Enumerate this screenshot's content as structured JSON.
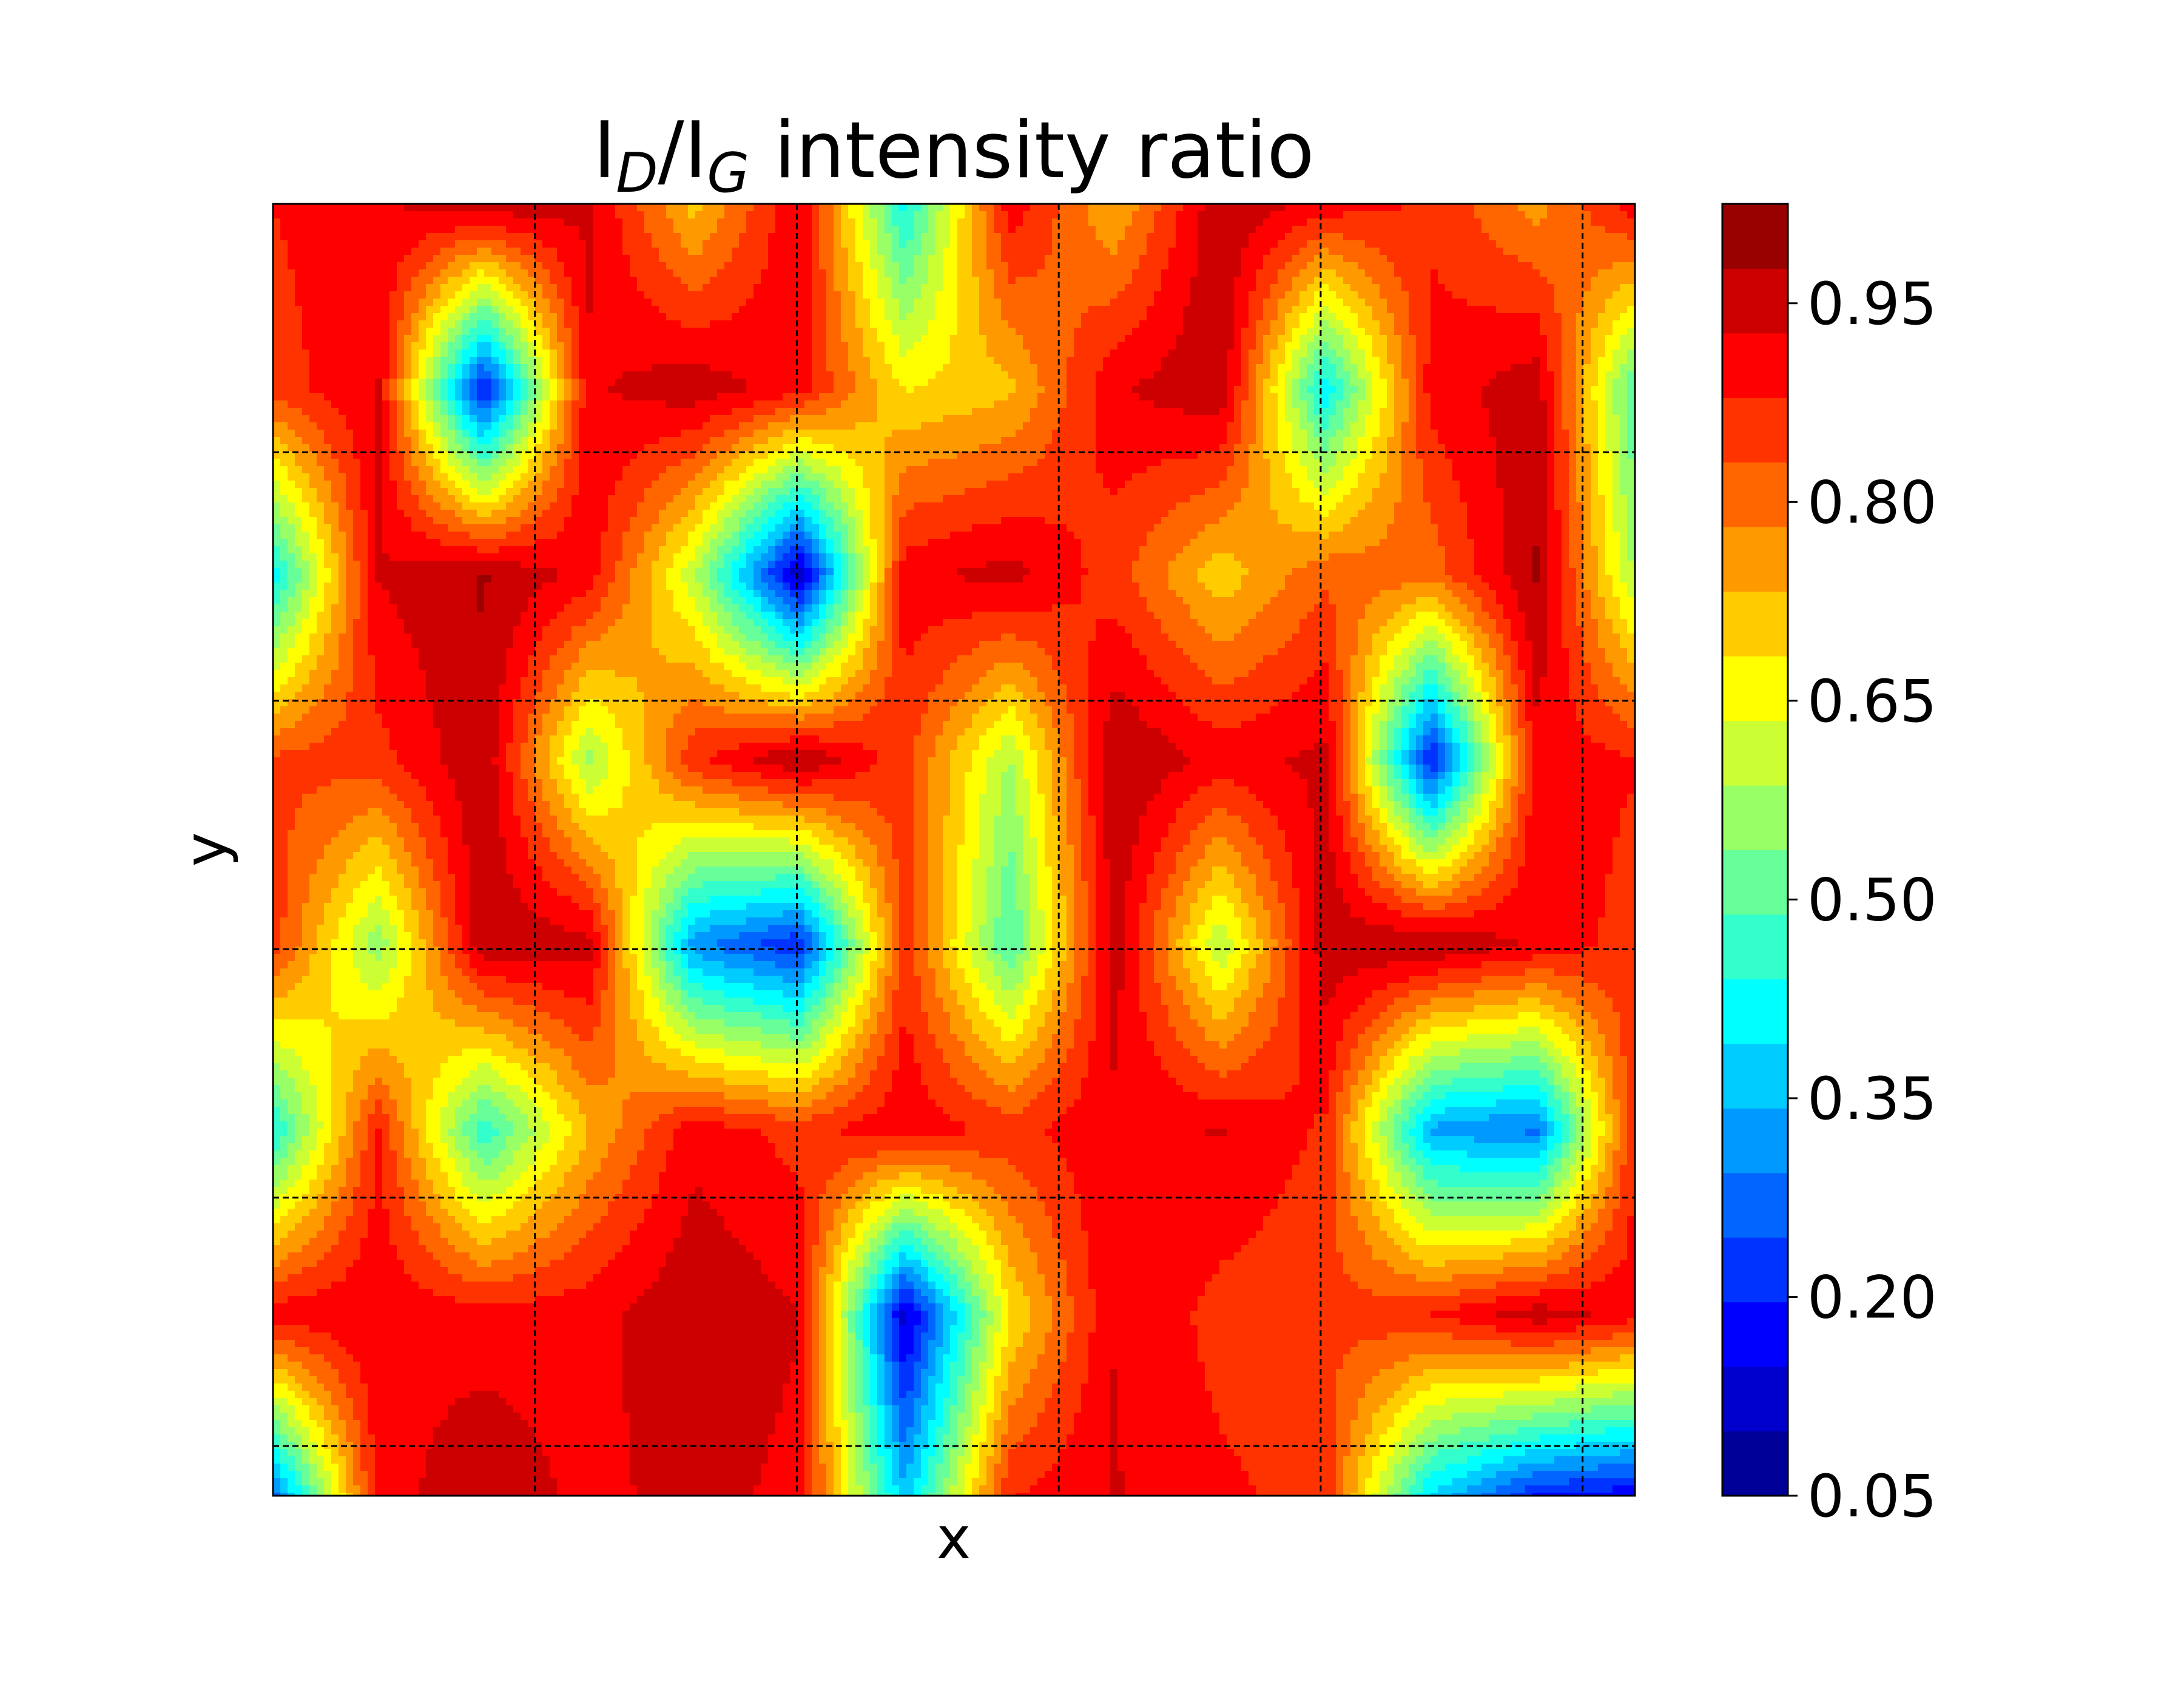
{
  "chart_data": {
    "type": "heatmap",
    "subtype": "filled-contour",
    "title": {
      "main_before": "I",
      "main_sub1": "D",
      "main_mid": "/I",
      "main_sub2": "G",
      "main_after": " intensity ratio"
    },
    "xlabel": "x",
    "ylabel": "y",
    "grid": true,
    "grid_style": "dashed",
    "colormap": "jet",
    "colorbar": {
      "levels_min": 0.05,
      "levels_max": 1.025,
      "num_levels": 20,
      "tick_labels": [
        "0.05",
        "0.20",
        "0.35",
        "0.50",
        "0.65",
        "0.80",
        "0.95"
      ]
    },
    "grid_x_count": 6,
    "grid_y_count": 6,
    "z": [
      [
        0.88,
        0.92,
        0.97,
        0.94,
        0.71,
        0.93,
        0.42,
        0.91,
        0.73,
        0.97,
        0.91,
        0.87,
        0.76,
        0.92
      ],
      [
        0.85,
        0.93,
        0.18,
        0.92,
        0.96,
        0.9,
        0.68,
        0.72,
        0.92,
        0.97,
        0.4,
        0.9,
        0.96,
        0.45
      ],
      [
        0.4,
        0.93,
        0.98,
        0.91,
        0.6,
        0.1,
        0.91,
        0.95,
        0.85,
        0.7,
        0.82,
        0.8,
        0.98,
        0.55
      ],
      [
        0.84,
        0.86,
        0.97,
        0.57,
        0.87,
        0.98,
        0.85,
        0.58,
        0.98,
        0.91,
        0.94,
        0.18,
        0.91,
        0.88
      ],
      [
        0.86,
        0.55,
        0.97,
        0.95,
        0.31,
        0.2,
        0.86,
        0.48,
        0.95,
        0.59,
        0.96,
        0.98,
        0.92,
        0.85
      ],
      [
        0.43,
        0.88,
        0.45,
        0.73,
        0.91,
        0.86,
        0.92,
        0.86,
        0.92,
        0.93,
        0.87,
        0.33,
        0.28,
        0.92
      ],
      [
        0.91,
        0.92,
        0.9,
        0.91,
        0.97,
        0.93,
        0.12,
        0.68,
        0.93,
        0.86,
        0.84,
        0.88,
        0.96,
        0.9
      ],
      [
        0.25,
        0.9,
        0.97,
        0.91,
        0.95,
        0.91,
        0.36,
        0.88,
        0.93,
        0.89,
        0.86,
        0.37,
        0.18,
        0.14
      ]
    ]
  },
  "colors": {
    "jet_stops": [
      "#00007f",
      "#0000ff",
      "#007fff",
      "#00ffff",
      "#7fff7f",
      "#ffff00",
      "#ff7f00",
      "#ff0000",
      "#7f0000"
    ]
  }
}
